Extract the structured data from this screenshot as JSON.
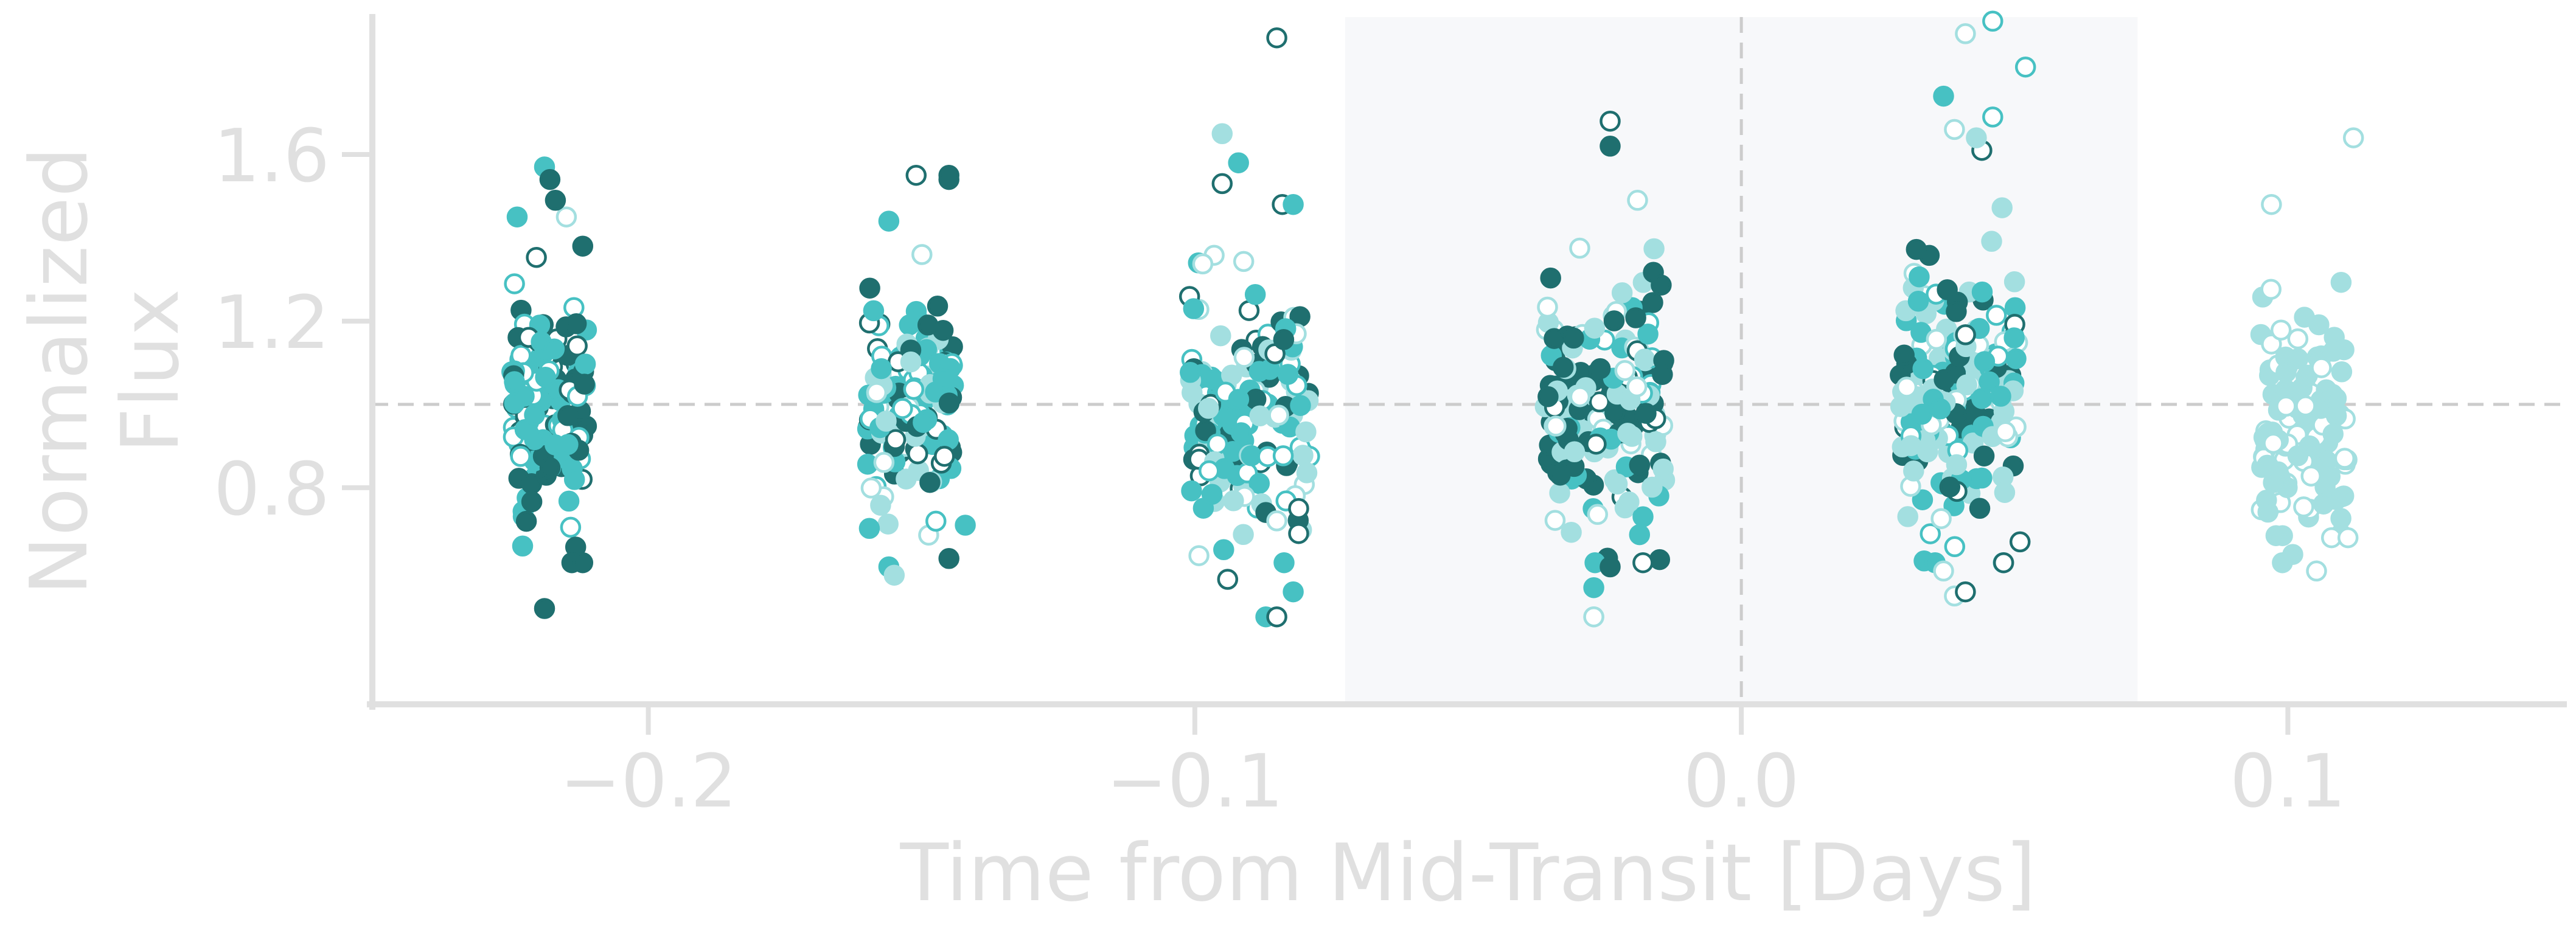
{
  "chart_data": {
    "type": "scatter",
    "xlabel": "Time from Mid-Transit [Days]",
    "ylabel": [
      "Normalized",
      "Flux"
    ],
    "xlim": [
      -0.2505,
      0.1505
    ],
    "ylim": [
      0.28,
      1.93
    ],
    "x_ticks": [
      -0.2,
      -0.1,
      0.0,
      0.1
    ],
    "x_tick_labels": [
      "−0.2",
      "−0.1",
      "0.0",
      "0.1"
    ],
    "y_ticks": [
      0.8,
      1.2,
      1.6
    ],
    "y_tick_labels": [
      "0.8",
      "1.2",
      "1.6"
    ],
    "reference_line_y": 1.0,
    "reference_line_x": 0.0,
    "transit_window": [
      -0.0725,
      0.0725
    ],
    "grid": false,
    "colors": {
      "dark": "#1f6f6f",
      "mid": "#47c1c3",
      "light": "#a3dfe0",
      "axis": "#e0e0e0",
      "reference": "#cccccc",
      "window": "#f7f8fa"
    },
    "groups": [
      {
        "center": -0.218,
        "half_width": 0.007,
        "n": 140,
        "mean": 1.0,
        "sd": 0.12,
        "ymin": 0.6,
        "ymax": 1.45,
        "palette": [
          "mid",
          "dark",
          "mid",
          "dark"
        ],
        "outliers": [
          {
            "x": -0.219,
            "y": 1.57,
            "c": "mid",
            "f": 1
          },
          {
            "x": -0.218,
            "y": 1.54,
            "c": "dark",
            "f": 1
          },
          {
            "x": -0.224,
            "y": 1.45,
            "c": "mid",
            "f": 1
          },
          {
            "x": -0.215,
            "y": 1.45,
            "c": "light",
            "f": 0
          },
          {
            "x": -0.217,
            "y": 1.49,
            "c": "dark",
            "f": 1
          },
          {
            "x": -0.212,
            "y": 1.38,
            "c": "dark",
            "f": 1
          },
          {
            "x": -0.223,
            "y": 0.66,
            "c": "mid",
            "f": 1
          },
          {
            "x": -0.214,
            "y": 0.62,
            "c": "dark",
            "f": 1
          },
          {
            "x": -0.212,
            "y": 0.62,
            "c": "dark",
            "f": 1
          },
          {
            "x": -0.219,
            "y": 0.51,
            "c": "dark",
            "f": 1
          }
        ]
      },
      {
        "center": -0.152,
        "half_width": 0.008,
        "n": 140,
        "mean": 1.0,
        "sd": 0.13,
        "ymin": 0.62,
        "ymax": 1.42,
        "palette": [
          "mid",
          "light",
          "dark",
          "mid"
        ],
        "outliers": [
          {
            "x": -0.151,
            "y": 1.55,
            "c": "dark",
            "f": 0
          },
          {
            "x": -0.145,
            "y": 1.54,
            "c": "dark",
            "f": 1
          },
          {
            "x": -0.145,
            "y": 1.55,
            "c": "dark",
            "f": 1
          },
          {
            "x": -0.156,
            "y": 1.44,
            "c": "mid",
            "f": 1
          },
          {
            "x": -0.156,
            "y": 0.61,
            "c": "mid",
            "f": 1
          },
          {
            "x": -0.145,
            "y": 0.63,
            "c": "dark",
            "f": 1
          },
          {
            "x": -0.155,
            "y": 0.59,
            "c": "light",
            "f": 1
          },
          {
            "x": -0.142,
            "y": 0.71,
            "c": "mid",
            "f": 1
          }
        ]
      },
      {
        "center": -0.09,
        "half_width": 0.011,
        "n": 165,
        "mean": 1.0,
        "sd": 0.15,
        "ymin": 0.62,
        "ymax": 1.45,
        "palette": [
          "light",
          "light",
          "mid",
          "dark",
          "mid"
        ],
        "outliers": [
          {
            "x": -0.085,
            "y": 1.88,
            "c": "dark",
            "f": 0
          },
          {
            "x": -0.095,
            "y": 1.65,
            "c": "light",
            "f": 1
          },
          {
            "x": -0.092,
            "y": 1.58,
            "c": "mid",
            "f": 1
          },
          {
            "x": -0.095,
            "y": 1.53,
            "c": "dark",
            "f": 0
          },
          {
            "x": -0.084,
            "y": 1.48,
            "c": "dark",
            "f": 0
          },
          {
            "x": -0.082,
            "y": 1.48,
            "c": "mid",
            "f": 1
          },
          {
            "x": -0.082,
            "y": 0.55,
            "c": "mid",
            "f": 1
          },
          {
            "x": -0.087,
            "y": 0.49,
            "c": "mid",
            "f": 1
          },
          {
            "x": -0.085,
            "y": 0.49,
            "c": "dark",
            "f": 0
          },
          {
            "x": -0.094,
            "y": 0.58,
            "c": "dark",
            "f": 0
          },
          {
            "x": -0.081,
            "y": 0.69,
            "c": "dark",
            "f": 0
          },
          {
            "x": -0.081,
            "y": 0.75,
            "c": "dark",
            "f": 0
          }
        ]
      },
      {
        "center": -0.025,
        "half_width": 0.011,
        "n": 180,
        "mean": 1.0,
        "sd": 0.15,
        "ymin": 0.62,
        "ymax": 1.45,
        "palette": [
          "light",
          "light",
          "mid",
          "dark",
          "dark"
        ],
        "outliers": [
          {
            "x": -0.024,
            "y": 1.68,
            "c": "dark",
            "f": 0
          },
          {
            "x": -0.024,
            "y": 1.62,
            "c": "dark",
            "f": 1
          },
          {
            "x": -0.019,
            "y": 1.49,
            "c": "light",
            "f": 0
          },
          {
            "x": -0.027,
            "y": 0.49,
            "c": "light",
            "f": 1
          },
          {
            "x": -0.027,
            "y": 0.49,
            "c": "light",
            "f": 0
          },
          {
            "x": -0.027,
            "y": 0.56,
            "c": "mid",
            "f": 1
          },
          {
            "x": -0.024,
            "y": 0.61,
            "c": "dark",
            "f": 1
          },
          {
            "x": -0.018,
            "y": 0.62,
            "c": "dark",
            "f": 0
          }
        ]
      },
      {
        "center": 0.04,
        "half_width": 0.011,
        "n": 180,
        "mean": 1.02,
        "sd": 0.16,
        "ymin": 0.62,
        "ymax": 1.52,
        "palette": [
          "light",
          "mid",
          "dark",
          "light",
          "mid"
        ],
        "outliers": [
          {
            "x": 0.046,
            "y": 1.92,
            "c": "mid",
            "f": 0
          },
          {
            "x": 0.041,
            "y": 1.89,
            "c": "light",
            "f": 0
          },
          {
            "x": 0.052,
            "y": 1.81,
            "c": "mid",
            "f": 0
          },
          {
            "x": 0.037,
            "y": 1.74,
            "c": "mid",
            "f": 1
          },
          {
            "x": 0.046,
            "y": 1.69,
            "c": "mid",
            "f": 0
          },
          {
            "x": 0.039,
            "y": 1.66,
            "c": "light",
            "f": 0
          },
          {
            "x": 0.044,
            "y": 1.61,
            "c": "dark",
            "f": 0
          },
          {
            "x": 0.043,
            "y": 1.64,
            "c": "light",
            "f": 1
          },
          {
            "x": 0.039,
            "y": 0.54,
            "c": "light",
            "f": 0
          },
          {
            "x": 0.041,
            "y": 0.55,
            "c": "dark",
            "f": 0
          },
          {
            "x": 0.037,
            "y": 0.6,
            "c": "light",
            "f": 0
          },
          {
            "x": 0.051,
            "y": 0.67,
            "c": "dark",
            "f": 0
          }
        ]
      },
      {
        "center": 0.103,
        "half_width": 0.008,
        "n": 130,
        "mean": 0.97,
        "sd": 0.13,
        "ymin": 0.6,
        "ymax": 1.33,
        "palette": [
          "light",
          "light",
          "light",
          "light"
        ],
        "outliers": [
          {
            "x": 0.112,
            "y": 1.64,
            "c": "light",
            "f": 0
          },
          {
            "x": 0.097,
            "y": 1.48,
            "c": "light",
            "f": 0
          },
          {
            "x": 0.108,
            "y": 0.68,
            "c": "light",
            "f": 0
          },
          {
            "x": 0.111,
            "y": 0.68,
            "c": "light",
            "f": 0
          },
          {
            "x": 0.099,
            "y": 0.62,
            "c": "light",
            "f": 1
          }
        ]
      }
    ]
  }
}
